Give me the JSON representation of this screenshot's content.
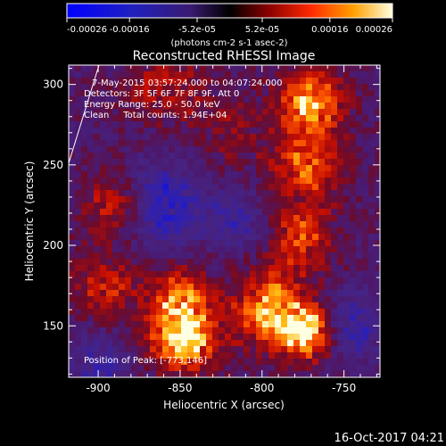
{
  "chart_data": {
    "type": "heatmap",
    "title": "Reconstructed RHESSI Image",
    "xlabel": "Heliocentric X (arcsec)",
    "ylabel": "Heliocentric Y (arcsec)",
    "xlim": [
      -918,
      -728
    ],
    "ylim": [
      118,
      312
    ],
    "x_ticks": [
      -900,
      -850,
      -800,
      -750
    ],
    "y_ticks": [
      150,
      200,
      250,
      300
    ],
    "colorbar": {
      "min": -0.00026,
      "max": 0.00026,
      "ticks": [
        "-0.00026",
        "-0.00016",
        "-5.2e-05",
        "5.2e-05",
        "0.00016",
        "0.00026"
      ],
      "label": "(photons cm-2 s-1 asec-2)"
    },
    "annotations": [
      "7-May-2015 03:57:24.000 to 04:07:24.000",
      "Detectors: 3F 5F 6F 7F 8F 9F, Att 0",
      "Energy Range: 25.0 - 50.0 keV",
      "Clean     Total counts: 1.94E+04"
    ],
    "peak_label": "Position of Peak: [-773,146]",
    "peak": [
      -773,
      146
    ],
    "sources": [
      {
        "x": -848,
        "y": 142,
        "value": 0.00026,
        "sigma": 14
      },
      {
        "x": -850,
        "y": 168,
        "value": 0.00017,
        "sigma": 13
      },
      {
        "x": -795,
        "y": 160,
        "value": 0.00022,
        "sigma": 16
      },
      {
        "x": -773,
        "y": 146,
        "value": 0.00024,
        "sigma": 12
      },
      {
        "x": -770,
        "y": 290,
        "value": 0.00022,
        "sigma": 14
      },
      {
        "x": -772,
        "y": 250,
        "value": 0.00018,
        "sigma": 15
      },
      {
        "x": -776,
        "y": 205,
        "value": 0.00015,
        "sigma": 14
      },
      {
        "x": -890,
        "y": 225,
        "value": 0.00014,
        "sigma": 14
      },
      {
        "x": -895,
        "y": 175,
        "value": 0.00012,
        "sigma": 14
      },
      {
        "x": -860,
        "y": 300,
        "value": 9e-05,
        "sigma": 18
      },
      {
        "x": -820,
        "y": 270,
        "value": 6e-05,
        "sigma": 16
      },
      {
        "x": -860,
        "y": 225,
        "value": -0.00016,
        "sigma": 18
      },
      {
        "x": -745,
        "y": 150,
        "value": -0.00013,
        "sigma": 14
      },
      {
        "x": -815,
        "y": 215,
        "value": -0.0001,
        "sigma": 12
      },
      {
        "x": -900,
        "y": 125,
        "value": -0.0001,
        "sigma": 14
      }
    ],
    "grid": false
  },
  "footer": {
    "timestamp": "16-Oct-2017 04:21"
  },
  "colors": {
    "background": "#000000",
    "axes": "#ffffff",
    "limb_line": "#ffffff"
  }
}
